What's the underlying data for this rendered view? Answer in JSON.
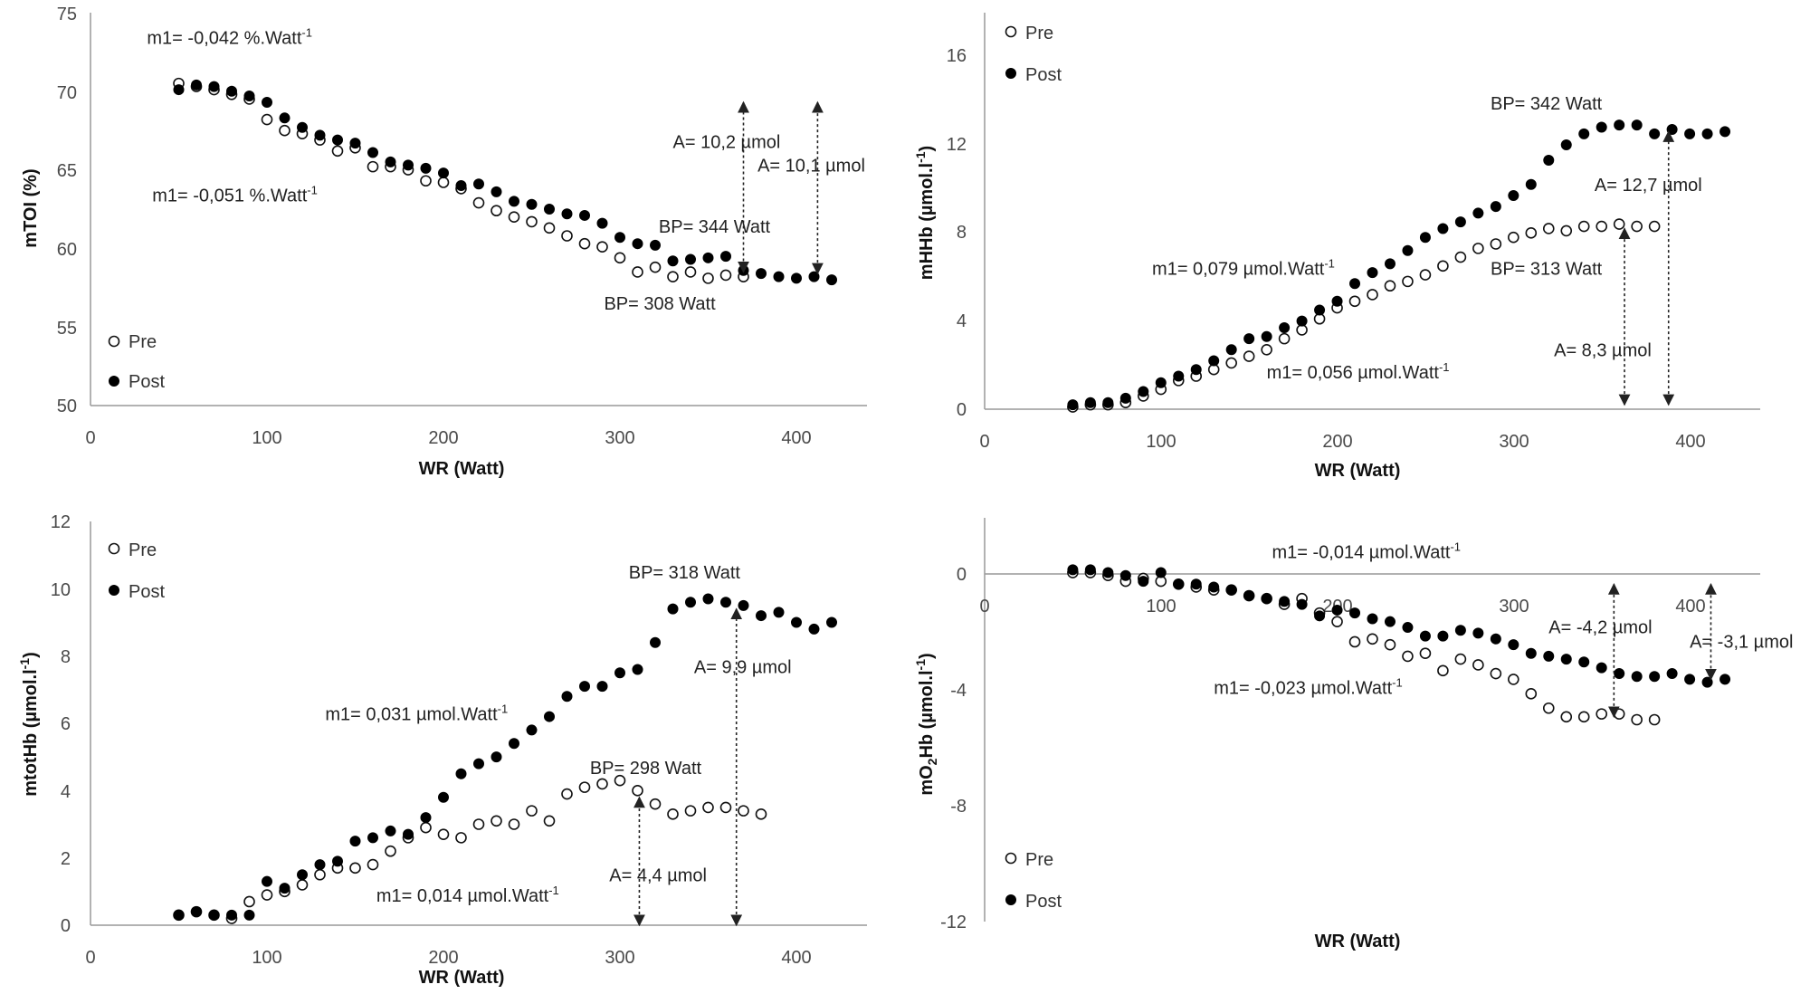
{
  "chart_data": [
    {
      "type": "scatter",
      "id": "tl",
      "xlabel": "WR (Watt)",
      "ylabel": "mTOI (%)",
      "xlim": [
        0,
        440
      ],
      "ylim": [
        50,
        75
      ],
      "xticks": [
        "0",
        "100",
        "200",
        "300",
        "400"
      ],
      "xtick_values": [
        0,
        100,
        200,
        300,
        400
      ],
      "yticks": [
        "50",
        "55",
        "60",
        "65",
        "70",
        "75"
      ],
      "ytick_values": [
        50,
        55,
        60,
        65,
        70,
        75
      ],
      "legend": [
        "Pre",
        "Post"
      ],
      "legend_position": "bottom-left",
      "series": [
        {
          "name": "Pre",
          "x": [
            50,
            60,
            70,
            80,
            90,
            100,
            110,
            120,
            130,
            140,
            150,
            160,
            170,
            180,
            190,
            200,
            210,
            220,
            230,
            240,
            250,
            260,
            270,
            280,
            290,
            300,
            310,
            320,
            330,
            340,
            350,
            360,
            370
          ],
          "y": [
            70.5,
            70.3,
            70.1,
            69.8,
            69.5,
            68.2,
            67.5,
            67.3,
            66.9,
            66.2,
            66.4,
            65.2,
            65.2,
            65.0,
            64.3,
            64.2,
            63.8,
            62.9,
            62.4,
            62.0,
            61.7,
            61.3,
            60.8,
            60.3,
            60.1,
            59.4,
            58.5,
            58.8,
            58.2,
            58.5,
            58.1,
            58.3,
            58.2
          ]
        },
        {
          "name": "Post",
          "x": [
            50,
            60,
            70,
            80,
            90,
            100,
            110,
            120,
            130,
            140,
            150,
            160,
            170,
            180,
            190,
            200,
            210,
            220,
            230,
            240,
            250,
            260,
            270,
            280,
            290,
            300,
            310,
            320,
            330,
            340,
            350,
            360,
            370,
            380,
            390,
            400,
            410,
            420
          ],
          "y": [
            70.1,
            70.4,
            70.3,
            70.0,
            69.7,
            69.3,
            68.3,
            67.7,
            67.2,
            66.9,
            66.7,
            66.1,
            65.5,
            65.3,
            65.1,
            64.8,
            64.0,
            64.1,
            63.6,
            63.0,
            62.8,
            62.5,
            62.2,
            62.1,
            61.6,
            60.7,
            60.3,
            60.2,
            59.2,
            59.3,
            59.4,
            59.5,
            58.6,
            58.4,
            58.2,
            58.1,
            58.2,
            58.0
          ]
        }
      ],
      "annotations": [
        {
          "text": "m1= -0,042 %.Watt-1",
          "x": 32,
          "y": 73.0
        },
        {
          "text": "m1= -0,051 %.Watt-1",
          "x": 35,
          "y": 63.0
        },
        {
          "text": "A= 10,2 µmol",
          "x": 330,
          "y": 66.4
        },
        {
          "text": "A= 10,1 µmol",
          "x": 378,
          "y": 64.9
        },
        {
          "text": "BP= 344 Watt",
          "x": 322,
          "y": 61.0
        },
        {
          "text": "BP= 308 Watt",
          "x": 291,
          "y": 56.1
        }
      ],
      "arrows": [
        {
          "x": 370,
          "y0": 58.5,
          "y1": 69.3
        },
        {
          "x": 412,
          "y0": 58.4,
          "y1": 69.3
        }
      ]
    },
    {
      "type": "scatter",
      "id": "tr",
      "xlabel": "WR (Watt)",
      "ylabel": "mHHb (µmol.l-1)",
      "xlim": [
        0,
        440
      ],
      "ylim": [
        0,
        18
      ],
      "xticks": [
        "0",
        "100",
        "200",
        "300",
        "400"
      ],
      "xtick_values": [
        0,
        100,
        200,
        300,
        400
      ],
      "yticks": [
        "0",
        "4",
        "8",
        "12",
        "16"
      ],
      "ytick_values": [
        0,
        4,
        8,
        12,
        16
      ],
      "legend": [
        "Pre",
        "Post"
      ],
      "legend_position": "top-left",
      "series": [
        {
          "name": "Pre",
          "x": [
            50,
            60,
            70,
            80,
            90,
            100,
            110,
            120,
            130,
            140,
            150,
            160,
            170,
            180,
            190,
            200,
            210,
            220,
            230,
            240,
            250,
            260,
            270,
            280,
            290,
            300,
            310,
            320,
            330,
            340,
            350,
            360,
            370,
            380
          ],
          "y": [
            0.1,
            0.2,
            0.2,
            0.3,
            0.6,
            0.9,
            1.3,
            1.5,
            1.8,
            2.1,
            2.4,
            2.7,
            3.2,
            3.6,
            4.1,
            4.6,
            4.9,
            5.2,
            5.6,
            5.8,
            6.1,
            6.5,
            6.9,
            7.3,
            7.5,
            7.8,
            8.0,
            8.2,
            8.1,
            8.3,
            8.3,
            8.4,
            8.3,
            8.3
          ]
        },
        {
          "name": "Post",
          "x": [
            50,
            60,
            70,
            80,
            90,
            100,
            110,
            120,
            130,
            140,
            150,
            160,
            170,
            180,
            190,
            200,
            210,
            220,
            230,
            240,
            250,
            260,
            270,
            280,
            290,
            300,
            310,
            320,
            330,
            340,
            350,
            360,
            370,
            380,
            390,
            400,
            410,
            420
          ],
          "y": [
            0.2,
            0.3,
            0.3,
            0.5,
            0.8,
            1.2,
            1.5,
            1.8,
            2.2,
            2.7,
            3.2,
            3.3,
            3.7,
            4.0,
            4.5,
            4.9,
            5.7,
            6.2,
            6.6,
            7.2,
            7.8,
            8.2,
            8.5,
            8.9,
            9.2,
            9.7,
            10.2,
            11.3,
            12.0,
            12.5,
            12.8,
            12.9,
            12.9,
            12.5,
            12.7,
            12.5,
            12.5,
            12.6
          ]
        }
      ],
      "annotations": [
        {
          "text": "BP= 342 Watt",
          "x": 287,
          "y": 13.6
        },
        {
          "text": "A= 12,7 µmol",
          "x": 346,
          "y": 9.9
        },
        {
          "text": "m1= 0,079 µmol.Watt-1",
          "x": 95,
          "y": 6.1
        },
        {
          "text": "BP= 313 Watt",
          "x": 287,
          "y": 6.1
        },
        {
          "text": "A= 8,3 µmol",
          "x": 323,
          "y": 2.4
        },
        {
          "text": "m1= 0,056 µmol.Watt-1",
          "x": 160,
          "y": 1.4
        }
      ],
      "arrows": [
        {
          "x": 363,
          "y0": 0.2,
          "y1": 8.2
        },
        {
          "x": 388,
          "y0": 0.2,
          "y1": 12.6
        }
      ]
    },
    {
      "type": "scatter",
      "id": "bl",
      "xlabel": "WR (Watt)",
      "ylabel": "mtotHb (µmol.l-1)",
      "xlim": [
        0,
        440
      ],
      "ylim": [
        0,
        12
      ],
      "xticks": [
        "0",
        "100",
        "200",
        "300",
        "400"
      ],
      "xtick_values": [
        0,
        100,
        200,
        300,
        400
      ],
      "yticks": [
        "0",
        "2",
        "4",
        "6",
        "8",
        "10",
        "12"
      ],
      "ytick_values": [
        0,
        2,
        4,
        6,
        8,
        10,
        12
      ],
      "legend": [
        "Pre",
        "Post"
      ],
      "legend_position": "top-left",
      "series": [
        {
          "name": "Pre",
          "x": [
            50,
            60,
            70,
            80,
            90,
            100,
            110,
            120,
            130,
            140,
            150,
            160,
            170,
            180,
            190,
            200,
            210,
            220,
            230,
            240,
            250,
            260,
            270,
            280,
            290,
            300,
            310,
            320,
            330,
            340,
            350,
            360,
            370,
            380
          ],
          "y": [
            0.3,
            0.4,
            0.3,
            0.2,
            0.7,
            0.9,
            1.0,
            1.2,
            1.5,
            1.7,
            1.7,
            1.8,
            2.2,
            2.6,
            2.9,
            2.7,
            2.6,
            3.0,
            3.1,
            3.0,
            3.4,
            3.1,
            3.9,
            4.1,
            4.2,
            4.3,
            4.0,
            3.6,
            3.3,
            3.4,
            3.5,
            3.5,
            3.4,
            3.3
          ]
        },
        {
          "name": "Post",
          "x": [
            50,
            60,
            70,
            80,
            90,
            100,
            110,
            120,
            130,
            140,
            150,
            160,
            170,
            180,
            190,
            200,
            210,
            220,
            230,
            240,
            250,
            260,
            270,
            280,
            290,
            300,
            310,
            320,
            330,
            340,
            350,
            360,
            370,
            380,
            390,
            400,
            410,
            420
          ],
          "y": [
            0.3,
            0.4,
            0.3,
            0.3,
            0.3,
            1.3,
            1.1,
            1.5,
            1.8,
            1.9,
            2.5,
            2.6,
            2.8,
            2.7,
            3.2,
            3.8,
            4.5,
            4.8,
            5.0,
            5.4,
            5.8,
            6.2,
            6.8,
            7.1,
            7.1,
            7.5,
            7.6,
            8.4,
            9.4,
            9.6,
            9.7,
            9.6,
            9.5,
            9.2,
            9.3,
            9.0,
            8.8,
            9.0
          ]
        }
      ],
      "annotations": [
        {
          "text": "BP= 318 Watt",
          "x": 305,
          "y": 10.3
        },
        {
          "text": "A= 9,9 µmol",
          "x": 342,
          "y": 7.5
        },
        {
          "text": "m1= 0,031 µmol.Watt-1",
          "x": 133,
          "y": 6.1
        },
        {
          "text": "BP= 298 Watt",
          "x": 283,
          "y": 4.5
        },
        {
          "text": "A= 4,4 µmol",
          "x": 294,
          "y": 1.3
        },
        {
          "text": "m1= 0,014 µmol.Watt-1",
          "x": 162,
          "y": 0.7
        }
      ],
      "arrows": [
        {
          "x": 311,
          "y0": 0.0,
          "y1": 3.8
        },
        {
          "x": 366,
          "y0": 0.0,
          "y1": 9.4
        }
      ]
    },
    {
      "type": "scatter",
      "id": "br",
      "xlabel": "WR (Watt)",
      "ylabel": "mO2Hb (µmol.l-1)",
      "xlim": [
        0,
        440
      ],
      "ylim": [
        -12,
        2
      ],
      "xticks": [
        "0",
        "100",
        "200",
        "300",
        "400"
      ],
      "xtick_values": [
        0,
        100,
        200,
        300,
        400
      ],
      "yticks": [
        "-12",
        "-8",
        "-4",
        "0"
      ],
      "ytick_values": [
        -12,
        -8,
        -4,
        0
      ],
      "legend": [
        "Pre",
        "Post"
      ],
      "legend_position": "bottom-left",
      "series": [
        {
          "name": "Pre",
          "x": [
            50,
            60,
            70,
            80,
            90,
            100,
            110,
            120,
            130,
            140,
            150,
            160,
            170,
            180,
            190,
            200,
            210,
            220,
            230,
            240,
            250,
            260,
            270,
            280,
            290,
            300,
            310,
            320,
            330,
            340,
            350,
            360,
            370,
            380
          ],
          "y": [
            0.1,
            0.1,
            0.0,
            -0.2,
            -0.1,
            -0.2,
            -0.3,
            -0.4,
            -0.5,
            -0.5,
            -0.7,
            -0.8,
            -1.0,
            -0.8,
            -1.3,
            -1.6,
            -2.3,
            -2.2,
            -2.4,
            -2.8,
            -2.7,
            -3.3,
            -2.9,
            -3.1,
            -3.4,
            -3.6,
            -4.1,
            -4.6,
            -4.9,
            -4.9,
            -4.8,
            -4.8,
            -5.0,
            -5.0
          ]
        },
        {
          "name": "Post",
          "x": [
            50,
            60,
            70,
            80,
            90,
            100,
            110,
            120,
            130,
            140,
            150,
            160,
            170,
            180,
            190,
            200,
            210,
            220,
            230,
            240,
            250,
            260,
            270,
            280,
            290,
            300,
            310,
            320,
            330,
            340,
            350,
            360,
            370,
            380,
            390,
            400,
            410,
            420
          ],
          "y": [
            0.2,
            0.2,
            0.1,
            0.0,
            -0.2,
            0.1,
            -0.3,
            -0.3,
            -0.4,
            -0.5,
            -0.7,
            -0.8,
            -0.9,
            -1.0,
            -1.4,
            -1.2,
            -1.3,
            -1.5,
            -1.6,
            -1.8,
            -2.1,
            -2.1,
            -1.9,
            -2.0,
            -2.2,
            -2.4,
            -2.7,
            -2.8,
            -2.9,
            -3.0,
            -3.2,
            -3.4,
            -3.5,
            -3.5,
            -3.4,
            -3.6,
            -3.7,
            -3.6
          ]
        }
      ],
      "annotations": [
        {
          "text": "m1= -0,014 µmol.Watt-1",
          "x": 163,
          "y": 0.6
        },
        {
          "text": "A= -4,2 µmol",
          "x": 320,
          "y": -2.0
        },
        {
          "text": "A= -3,1 µmol",
          "x": 400,
          "y": -2.5
        },
        {
          "text": "m1= -0,023 µmol.Watt-1",
          "x": 130,
          "y": -4.1
        }
      ],
      "arrows": [
        {
          "x": 357,
          "y0": -4.9,
          "y1": -0.3
        },
        {
          "x": 412,
          "y0": -3.6,
          "y1": -0.3
        }
      ]
    }
  ]
}
